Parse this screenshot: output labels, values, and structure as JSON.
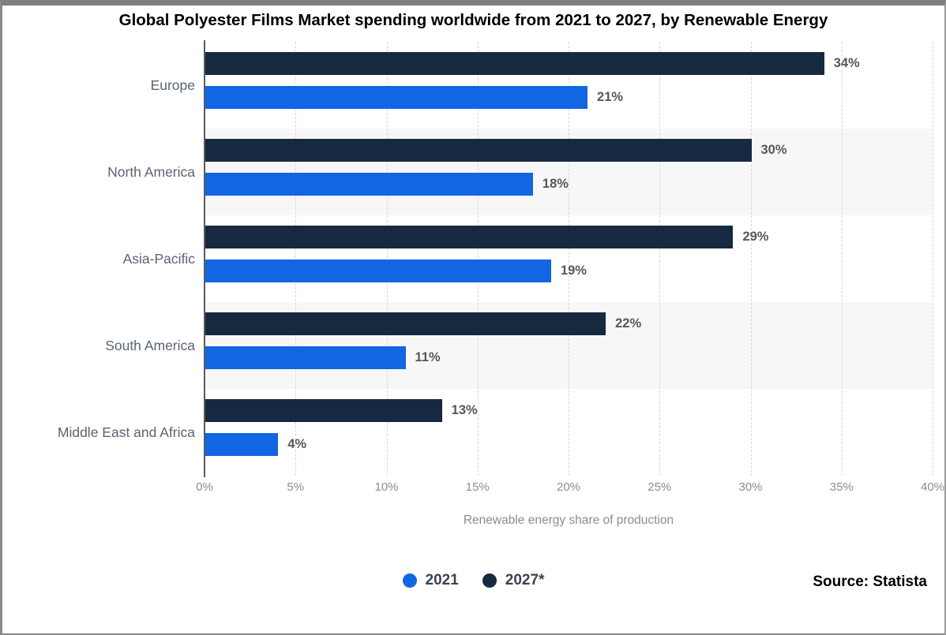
{
  "title": "Global Polyester Films Market spending worldwide from 2021 to 2027, by Renewable Energy",
  "source": {
    "text": "Source: Statista"
  },
  "legend": {
    "items": [
      {
        "label": "2021",
        "color": "#1265e3"
      },
      {
        "label": "2027*",
        "color": "#162940"
      }
    ]
  },
  "chart_data": {
    "type": "bar",
    "orientation": "horizontal",
    "title": "Global Polyester Films Market spending worldwide from 2021 to 2027, by Renewable Energy",
    "categories": [
      "Europe",
      "North America",
      "Asia-Pacific",
      "South America",
      "Middle East and Africa"
    ],
    "series": [
      {
        "name": "2021",
        "color": "#1265e3",
        "values": [
          21,
          18,
          19,
          11,
          4
        ]
      },
      {
        "name": "2027*",
        "color": "#162940",
        "values": [
          34,
          30,
          29,
          22,
          13
        ]
      }
    ],
    "bar_display_order": [
      "2027*",
      "2021"
    ],
    "value_suffix": "%",
    "xlabel": "Renewable energy share of production",
    "ylabel": "",
    "x_ticks": [
      "0%",
      "5%",
      "10%",
      "15%",
      "20%",
      "25%",
      "30%",
      "35%",
      "40%"
    ],
    "xlim": [
      0,
      40
    ],
    "grid": "vertical-dashed",
    "gridline_color": "#d8d8d8",
    "row_band_color": "#f7f7f7",
    "banded_row_indices": [
      1,
      3
    ],
    "legend_position": "bottom",
    "value_label_color": "#57575a",
    "source": "Statista"
  }
}
